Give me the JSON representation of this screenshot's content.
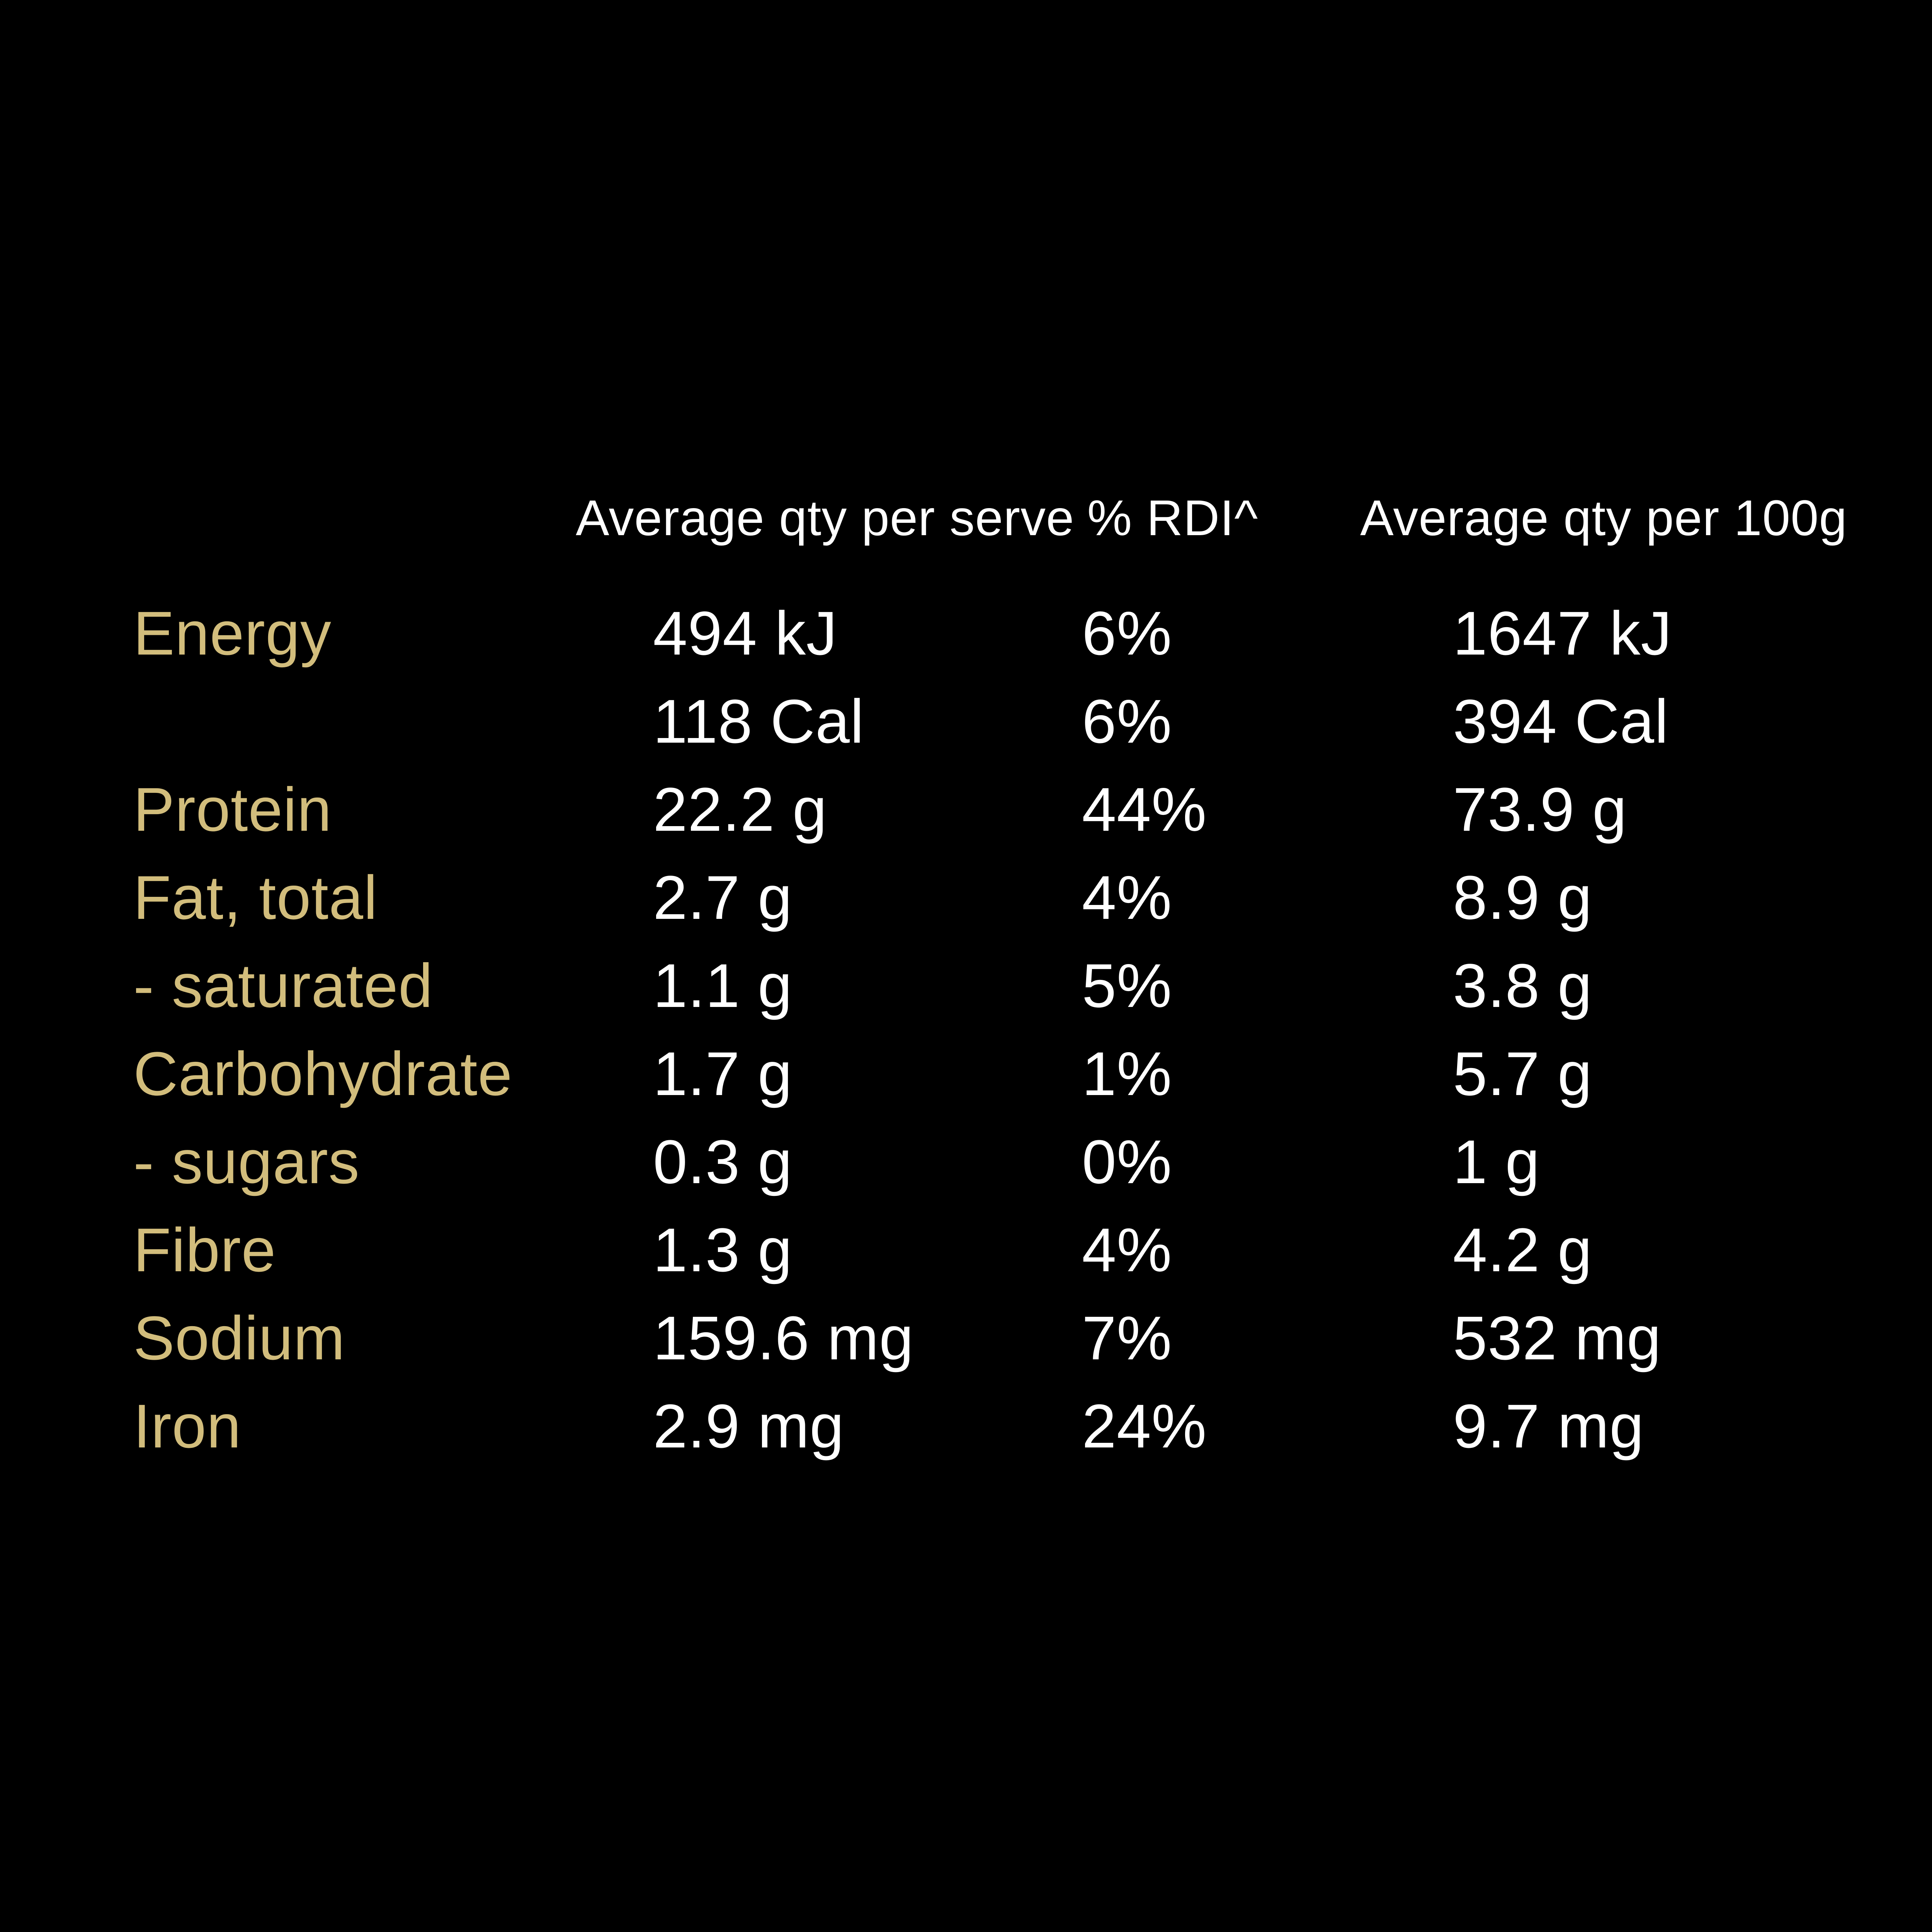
{
  "colors": {
    "background": "#000000",
    "label_gold": "#d2bd7c",
    "value_white": "#ffffff"
  },
  "table": {
    "headers": {
      "serve": "Average qty per serve",
      "rdi": "% RDI^",
      "per100": "Average qty per 100g"
    },
    "rows": [
      {
        "label": "Energy",
        "serve": "494 kJ",
        "rdi": "6%",
        "per100": "1647 kJ"
      },
      {
        "label": "",
        "serve": "118 Cal",
        "rdi": "6%",
        "per100": "394 Cal"
      },
      {
        "label": "Protein",
        "serve": "22.2 g",
        "rdi": "44%",
        "per100": "73.9 g"
      },
      {
        "label": "Fat, total",
        "serve": "2.7 g",
        "rdi": "4%",
        "per100": "8.9 g"
      },
      {
        "label": "- saturated",
        "serve": "1.1 g",
        "rdi": "5%",
        "per100": "3.8 g"
      },
      {
        "label": "Carbohydrate",
        "serve": "1.7 g",
        "rdi": "1%",
        "per100": "5.7 g"
      },
      {
        "label": "- sugars",
        "serve": "0.3 g",
        "rdi": "0%",
        "per100": "1 g"
      },
      {
        "label": "Fibre",
        "serve": "1.3 g",
        "rdi": "4%",
        "per100": "4.2 g"
      },
      {
        "label": "Sodium",
        "serve": "159.6 mg",
        "rdi": "7%",
        "per100": "532 mg"
      },
      {
        "label": "Iron",
        "serve": "2.9 mg",
        "rdi": "24%",
        "per100": "9.7 mg"
      }
    ]
  }
}
